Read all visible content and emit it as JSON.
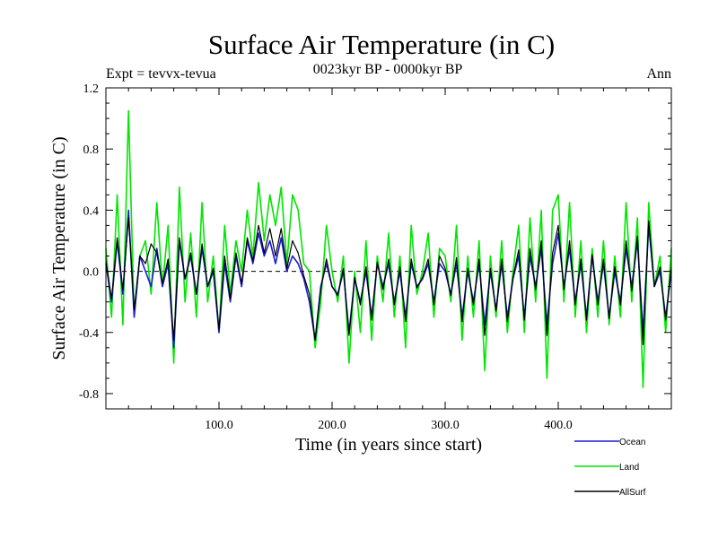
{
  "chart_data": {
    "type": "line",
    "title": "Surface Air Temperature (in C)",
    "subtitle_left": "Expt = tevvx-tevua",
    "subtitle_center": "0023kyr BP - 0000kyr BP",
    "subtitle_right": "Ann",
    "xlabel": "Time (in years since start)",
    "ylabel": "Surface Air Temperature (in C)",
    "xlim": [
      0,
      500
    ],
    "ylim": [
      -0.9,
      1.2
    ],
    "xticks": [
      100,
      200,
      300,
      400
    ],
    "xtick_labels": [
      "100.0",
      "200.0",
      "300.0",
      "400.0"
    ],
    "yticks": [
      -0.8,
      -0.4,
      0.0,
      0.4,
      0.8,
      1.2
    ],
    "ytick_labels": [
      "-0.8",
      "-0.4",
      "0.0",
      "0.4",
      "0.8",
      "1.2"
    ],
    "zero_line": true,
    "grid": false,
    "legend_position": "bottom-right",
    "series": [
      {
        "name": "Land",
        "color": "#00e600",
        "x": [
          0,
          5,
          10,
          15,
          20,
          25,
          30,
          35,
          40,
          45,
          50,
          55,
          60,
          65,
          70,
          75,
          80,
          85,
          90,
          95,
          100,
          105,
          110,
          115,
          120,
          125,
          130,
          135,
          140,
          145,
          150,
          155,
          160,
          165,
          170,
          175,
          180,
          185,
          190,
          195,
          200,
          205,
          210,
          215,
          220,
          225,
          230,
          235,
          240,
          245,
          250,
          255,
          260,
          265,
          270,
          275,
          280,
          285,
          290,
          295,
          300,
          305,
          310,
          315,
          320,
          325,
          330,
          335,
          340,
          345,
          350,
          355,
          360,
          365,
          370,
          375,
          380,
          385,
          390,
          395,
          400,
          405,
          410,
          415,
          420,
          425,
          430,
          435,
          440,
          445,
          450,
          455,
          460,
          465,
          470,
          475,
          480,
          485,
          490,
          495,
          500
        ],
        "y": [
          0.15,
          -0.3,
          0.5,
          -0.35,
          1.05,
          -0.3,
          0.1,
          0.2,
          -0.15,
          0.45,
          -0.1,
          0.3,
          -0.6,
          0.55,
          -0.2,
          0.25,
          -0.3,
          0.45,
          -0.2,
          0.1,
          -0.4,
          0.3,
          -0.15,
          0.2,
          0.0,
          0.4,
          0.1,
          0.58,
          0.2,
          0.5,
          0.3,
          0.55,
          0.05,
          0.5,
          0.4,
          0.05,
          0.0,
          -0.5,
          -0.2,
          0.3,
          0.0,
          -0.2,
          0.1,
          -0.6,
          0.0,
          -0.4,
          0.2,
          -0.45,
          0.1,
          -0.2,
          0.25,
          -0.3,
          0.1,
          -0.5,
          0.3,
          -0.15,
          0.0,
          0.25,
          -0.3,
          0.15,
          0.1,
          -0.2,
          0.3,
          -0.45,
          0.1,
          -0.3,
          0.2,
          -0.65,
          0.1,
          -0.3,
          0.2,
          -0.4,
          0.0,
          0.3,
          -0.4,
          0.35,
          -0.2,
          0.4,
          -0.7,
          0.4,
          0.5,
          -0.2,
          0.45,
          -0.3,
          0.2,
          -0.4,
          0.15,
          -0.3,
          0.2,
          -0.35,
          0.1,
          -0.3,
          0.45,
          -0.2,
          0.35,
          -0.76,
          0.45,
          -0.1,
          0.1,
          -0.4,
          0.15
        ]
      },
      {
        "name": "Ocean",
        "color": "#1c1cd6",
        "x": [
          0,
          5,
          10,
          15,
          20,
          25,
          30,
          35,
          40,
          45,
          50,
          55,
          60,
          65,
          70,
          75,
          80,
          85,
          90,
          95,
          100,
          105,
          110,
          115,
          120,
          125,
          130,
          135,
          140,
          145,
          150,
          155,
          160,
          165,
          170,
          175,
          180,
          185,
          190,
          195,
          200,
          205,
          210,
          215,
          220,
          225,
          230,
          235,
          240,
          245,
          250,
          255,
          260,
          265,
          270,
          275,
          280,
          285,
          290,
          295,
          300,
          305,
          310,
          315,
          320,
          325,
          330,
          335,
          340,
          345,
          350,
          355,
          360,
          365,
          370,
          375,
          380,
          385,
          390,
          395,
          400,
          405,
          410,
          415,
          420,
          425,
          430,
          435,
          440,
          445,
          450,
          455,
          460,
          465,
          470,
          475,
          480,
          485,
          490,
          495,
          500
        ],
        "y": [
          0.05,
          -0.2,
          0.2,
          -0.15,
          0.4,
          -0.3,
          0.1,
          0.0,
          -0.1,
          0.15,
          -0.1,
          0.05,
          -0.5,
          0.2,
          -0.05,
          0.1,
          -0.15,
          0.15,
          -0.1,
          0.0,
          -0.4,
          0.05,
          -0.2,
          0.1,
          -0.1,
          0.2,
          0.05,
          0.25,
          0.1,
          0.2,
          0.05,
          0.22,
          0.0,
          0.1,
          0.05,
          -0.05,
          -0.2,
          -0.45,
          -0.1,
          0.05,
          -0.1,
          -0.15,
          0.0,
          -0.4,
          -0.05,
          -0.2,
          0.0,
          -0.3,
          0.05,
          -0.1,
          0.05,
          -0.2,
          0.0,
          -0.3,
          0.05,
          -0.1,
          -0.05,
          0.05,
          -0.2,
          0.05,
          0.0,
          -0.15,
          0.05,
          -0.3,
          0.0,
          -0.2,
          0.05,
          -0.35,
          0.0,
          -0.25,
          0.05,
          -0.3,
          -0.05,
          0.1,
          -0.3,
          0.1,
          -0.1,
          0.15,
          -0.35,
          0.05,
          0.25,
          -0.1,
          0.15,
          -0.2,
          0.05,
          -0.3,
          0.1,
          -0.2,
          0.05,
          -0.3,
          0.0,
          -0.2,
          0.15,
          -0.1,
          0.2,
          -0.4,
          0.3,
          -0.1,
          0.0,
          -0.3,
          0.0
        ]
      },
      {
        "name": "AllSurf",
        "color": "#000000",
        "x": [
          0,
          5,
          10,
          15,
          20,
          25,
          30,
          35,
          40,
          45,
          50,
          55,
          60,
          65,
          70,
          75,
          80,
          85,
          90,
          95,
          100,
          105,
          110,
          115,
          120,
          125,
          130,
          135,
          140,
          145,
          150,
          155,
          160,
          165,
          170,
          175,
          180,
          185,
          190,
          195,
          200,
          205,
          210,
          215,
          220,
          225,
          230,
          235,
          240,
          245,
          250,
          255,
          260,
          265,
          270,
          275,
          280,
          285,
          290,
          295,
          300,
          305,
          310,
          315,
          320,
          325,
          330,
          335,
          340,
          345,
          350,
          355,
          360,
          365,
          370,
          375,
          380,
          385,
          390,
          395,
          400,
          405,
          410,
          415,
          420,
          425,
          430,
          435,
          440,
          445,
          450,
          455,
          460,
          465,
          470,
          475,
          480,
          485,
          490,
          495,
          500
        ],
        "y": [
          0.07,
          -0.18,
          0.22,
          -0.12,
          0.35,
          -0.25,
          0.1,
          0.05,
          0.18,
          0.12,
          -0.08,
          0.08,
          -0.45,
          0.22,
          -0.05,
          0.12,
          -0.15,
          0.18,
          -0.1,
          0.02,
          -0.38,
          0.1,
          -0.18,
          0.12,
          -0.08,
          0.22,
          0.07,
          0.3,
          0.12,
          0.28,
          0.1,
          0.28,
          0.02,
          0.2,
          0.12,
          -0.03,
          -0.15,
          -0.45,
          -0.12,
          0.08,
          -0.1,
          -0.16,
          0.02,
          -0.42,
          -0.04,
          -0.22,
          0.03,
          -0.32,
          0.06,
          -0.12,
          0.08,
          -0.22,
          0.03,
          -0.33,
          0.08,
          -0.11,
          -0.04,
          0.08,
          -0.22,
          0.1,
          0.02,
          -0.16,
          0.09,
          -0.33,
          0.02,
          -0.22,
          0.08,
          -0.42,
          0.02,
          -0.26,
          0.08,
          -0.33,
          -0.04,
          0.14,
          -0.32,
          0.15,
          -0.12,
          0.2,
          -0.42,
          0.12,
          0.3,
          -0.12,
          0.2,
          -0.22,
          0.08,
          -0.32,
          0.11,
          -0.22,
          0.08,
          -0.31,
          0.03,
          -0.22,
          0.2,
          -0.13,
          0.23,
          -0.48,
          0.33,
          -0.1,
          0.03,
          -0.32,
          0.03
        ]
      }
    ],
    "legend_order": [
      "Ocean",
      "Land",
      "AllSurf"
    ]
  }
}
